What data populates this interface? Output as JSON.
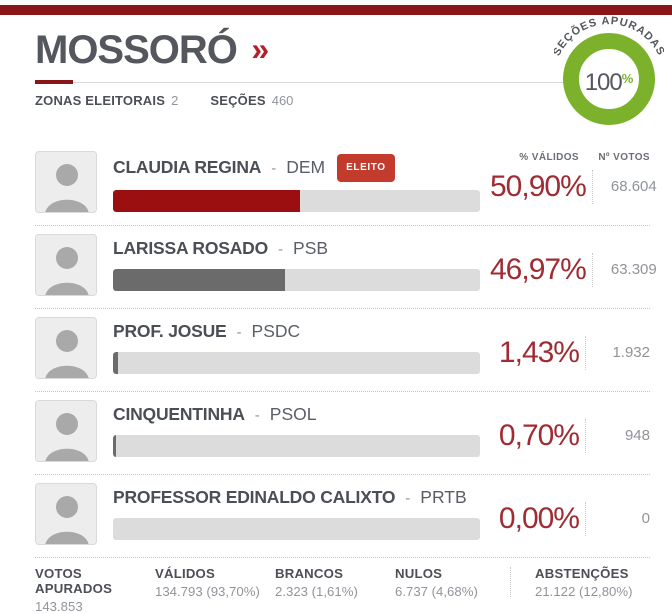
{
  "header": {
    "title": "MOSSORÓ",
    "link_chevron": "»",
    "zonas": {
      "label": "ZONAS ELEITORAIS",
      "value": "2"
    },
    "secoes": {
      "label": "SEÇÕES",
      "value": "460"
    },
    "apuracao_badge": {
      "label": "SEÇÕES APURADAS",
      "value": "100",
      "unit": "%"
    }
  },
  "columns": {
    "percent_header": "% VÁLIDOS",
    "votes_header": "Nº VOTOS"
  },
  "row": {
    "dash": "-"
  },
  "candidates": [
    {
      "name": "CLAUDIA REGINA",
      "party": "DEM",
      "elected": true,
      "elected_label": "ELEITO",
      "percent": "50,90%",
      "percent_value": 50.9,
      "votes": "68.604"
    },
    {
      "name": "LARISSA ROSADO",
      "party": "PSB",
      "elected": false,
      "elected_label": "",
      "percent": "46,97%",
      "percent_value": 46.97,
      "votes": "63.309"
    },
    {
      "name": "PROF. JOSUE",
      "party": "PSDC",
      "elected": false,
      "elected_label": "",
      "percent": "1,43%",
      "percent_value": 1.43,
      "votes": "1.932"
    },
    {
      "name": "CINQUENTINHA",
      "party": "PSOL",
      "elected": false,
      "elected_label": "",
      "percent": "0,70%",
      "percent_value": 0.7,
      "votes": "948"
    },
    {
      "name": "PROFESSOR EDINALDO CALIXTO",
      "party": "PRTB",
      "elected": false,
      "elected_label": "",
      "percent": "0,00%",
      "percent_value": 0.0,
      "votes": "0"
    }
  ],
  "footer": {
    "items": [
      {
        "label": "VOTOS APURADOS",
        "value": "143.853"
      },
      {
        "label": "VÁLIDOS",
        "value": "134.793 (93,70%)"
      },
      {
        "label": "BRANCOS",
        "value": "2.323 (1,61%)"
      },
      {
        "label": "NULOS",
        "value": "6.737 (4,68%)"
      },
      {
        "label": "ABSTENÇÕES",
        "value": "21.122 (12,80%)"
      }
    ]
  },
  "colors": {
    "top_bar_red": "#8a1619",
    "accent_red": "#b2212b",
    "elected_badge_bg": "#c23b2c",
    "percent_red": "#a02c33",
    "bar_fill_elected": "#9c0f10",
    "bar_fill_default": "#6b6b6b",
    "bar_track": "#dcdcdc",
    "progress_green": "#7cb22b",
    "title_gray": "#54575e",
    "value_gray": "#90949a"
  }
}
